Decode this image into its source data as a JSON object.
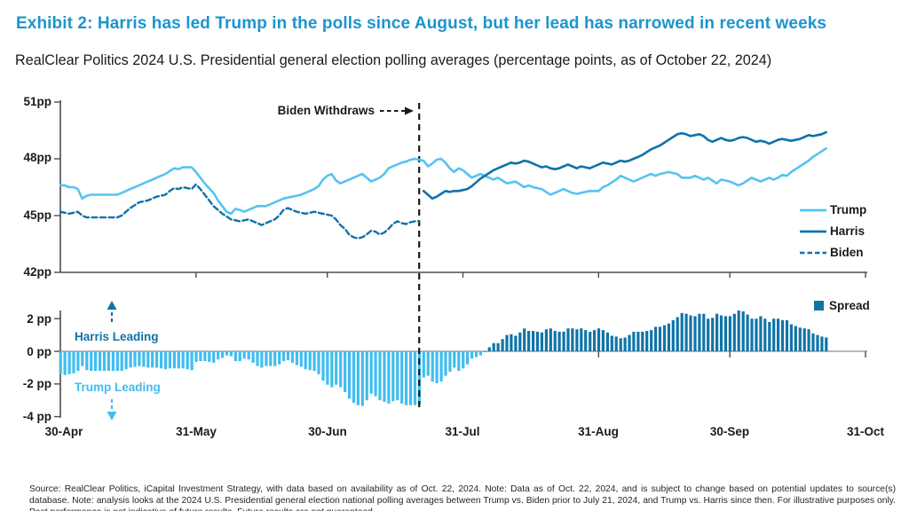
{
  "header": {
    "title": "Exhibit 2: Harris has led Trump in the polls since August, but her lead has narrowed in recent weeks",
    "subtitle": "RealClear Politics 2024 U.S. Presidential general election polling averages (percentage points, as of October 22, 2024)",
    "title_color": "#1b95cd"
  },
  "chart_data": {
    "type": "line+bar",
    "top_chart": {
      "type": "line",
      "ylim": [
        42,
        51
      ],
      "yticks": [
        51,
        48,
        45,
        42
      ],
      "ytick_labels": [
        "51pp",
        "48pp",
        "45pp",
        "42pp"
      ],
      "unit": "percentage points",
      "series": [
        {
          "name": "Trump",
          "color": "#55c4ef",
          "style": "solid",
          "start_day": 0,
          "values": [
            46.6,
            46.6,
            46.5,
            46.5,
            46.4,
            45.9,
            46.05,
            46.1,
            46.1,
            46.1,
            46.1,
            46.1,
            46.1,
            46.1,
            46.2,
            46.3,
            46.4,
            46.5,
            46.6,
            46.7,
            46.8,
            46.9,
            47.0,
            47.1,
            47.2,
            47.35,
            47.5,
            47.45,
            47.55,
            47.55,
            47.55,
            47.3,
            47.0,
            46.7,
            46.45,
            46.2,
            45.8,
            45.5,
            45.2,
            45.1,
            45.35,
            45.3,
            45.2,
            45.3,
            45.4,
            45.5,
            45.5,
            45.5,
            45.6,
            45.7,
            45.8,
            45.9,
            45.95,
            46.0,
            46.05,
            46.1,
            46.2,
            46.3,
            46.4,
            46.55,
            46.9,
            47.1,
            47.2,
            46.85,
            46.7,
            46.8,
            46.9,
            47.0,
            47.1,
            47.2,
            47.0,
            46.8,
            46.9,
            47.0,
            47.2,
            47.5,
            47.6,
            47.7,
            47.8,
            47.85,
            47.95,
            48.0,
            47.95,
            47.9,
            47.6,
            47.75,
            47.95,
            48.0,
            47.8,
            47.5,
            47.3,
            47.5,
            47.4,
            47.2,
            47.0,
            47.1,
            47.2,
            47.1,
            47.0,
            46.9,
            47.0,
            46.85,
            46.7,
            46.75,
            46.8,
            46.65,
            46.5,
            46.6,
            46.5,
            46.45,
            46.4,
            46.25,
            46.1,
            46.2,
            46.3,
            46.4,
            46.3,
            46.2,
            46.15,
            46.2,
            46.25,
            46.3,
            46.3,
            46.3,
            46.5,
            46.6,
            46.75,
            46.9,
            47.1,
            47.0,
            46.9,
            46.8,
            46.9,
            47.0,
            47.1,
            47.2,
            47.1,
            47.2,
            47.25,
            47.3,
            47.25,
            47.2,
            47.0,
            47.0,
            47.0,
            47.1,
            47.0,
            46.9,
            47.0,
            46.85,
            46.7,
            46.9,
            46.85,
            46.8,
            46.7,
            46.6,
            46.7,
            46.85,
            47.0,
            46.9,
            46.8,
            46.9,
            47.0,
            46.9,
            47.0,
            47.15,
            47.1,
            47.3,
            47.45,
            47.6,
            47.75,
            47.9,
            48.1,
            48.25,
            48.4,
            48.55
          ]
        },
        {
          "name": "Harris",
          "color": "#0f72a8",
          "style": "solid",
          "start_day": 83,
          "values": [
            46.3,
            46.1,
            45.9,
            46.0,
            46.15,
            46.3,
            46.25,
            46.3,
            46.3,
            46.35,
            46.4,
            46.55,
            46.75,
            46.95,
            47.1,
            47.25,
            47.4,
            47.5,
            47.6,
            47.7,
            47.8,
            47.75,
            47.8,
            47.9,
            47.85,
            47.75,
            47.65,
            47.55,
            47.6,
            47.5,
            47.45,
            47.5,
            47.6,
            47.7,
            47.6,
            47.5,
            47.6,
            47.55,
            47.5,
            47.6,
            47.7,
            47.8,
            47.75,
            47.7,
            47.8,
            47.9,
            47.85,
            47.9,
            48.0,
            48.1,
            48.2,
            48.35,
            48.5,
            48.6,
            48.7,
            48.85,
            49.0,
            49.15,
            49.3,
            49.35,
            49.3,
            49.2,
            49.25,
            49.3,
            49.2,
            49.0,
            48.9,
            49.0,
            49.1,
            49.0,
            48.95,
            49.0,
            49.1,
            49.15,
            49.1,
            49.0,
            48.9,
            48.95,
            48.9,
            48.8,
            48.9,
            49.0,
            49.05,
            49.0,
            48.95,
            49.0,
            49.05,
            49.15,
            49.25,
            49.2,
            49.25,
            49.3,
            49.4
          ]
        },
        {
          "name": "Biden",
          "color": "#0f72a8",
          "style": "dashed",
          "start_day": 0,
          "values": [
            45.2,
            45.15,
            45.1,
            45.15,
            45.2,
            45.0,
            44.9,
            44.9,
            44.9,
            44.9,
            44.9,
            44.9,
            44.9,
            44.9,
            45.0,
            45.2,
            45.4,
            45.55,
            45.7,
            45.75,
            45.8,
            45.9,
            46.0,
            46.05,
            46.1,
            46.3,
            46.45,
            46.4,
            46.5,
            46.45,
            46.4,
            46.65,
            46.4,
            46.1,
            45.8,
            45.5,
            45.3,
            45.1,
            44.95,
            44.8,
            44.75,
            44.7,
            44.75,
            44.8,
            44.7,
            44.6,
            44.5,
            44.6,
            44.7,
            44.8,
            45.0,
            45.3,
            45.4,
            45.3,
            45.2,
            45.15,
            45.1,
            45.15,
            45.2,
            45.15,
            45.1,
            45.05,
            45.0,
            44.8,
            44.5,
            44.3,
            44.0,
            43.85,
            43.8,
            43.85,
            44.0,
            44.2,
            44.15,
            44.0,
            44.1,
            44.3,
            44.55,
            44.7,
            44.6,
            44.55,
            44.65,
            44.7,
            44.7
          ]
        }
      ]
    },
    "bottom_chart": {
      "type": "bar",
      "name": "Spread",
      "yticks": [
        2,
        0,
        -2,
        -4
      ],
      "ytick_labels": [
        "2 pp",
        "0 pp",
        "-2 pp",
        "-4 pp"
      ],
      "spread_rule": "daily spread = (Biden before day 83, Harris after) minus Trump",
      "colors": {
        "positive": "#1074a8",
        "negative": "#41bdf0"
      }
    },
    "x_axis": {
      "tick_labels": [
        "30-Apr",
        "31-May",
        "30-Jun",
        "31-Jul",
        "31-Aug",
        "30-Sep",
        "31-Oct"
      ],
      "tick_days": [
        0,
        31,
        61,
        92,
        123,
        153,
        184
      ],
      "start_date": "30-Apr",
      "end_date": "31-Oct"
    },
    "annotations": {
      "biden_withdraws": {
        "label": "Biden Withdraws",
        "day": 82
      },
      "harris_leading": {
        "label": "Harris Leading",
        "color": "#0f72a8"
      },
      "trump_leading": {
        "label": "Trump Leading",
        "color": "#41bdf0"
      }
    },
    "legend": {
      "items": [
        "Trump",
        "Harris",
        "Biden"
      ],
      "spread_label": "Spread",
      "position": "right"
    }
  },
  "footer": {
    "source_text": "Source: RealClear Politics, iCapital Investment Strategy, with data based on availability as of Oct. 22, 2024. Note: Data as of Oct. 22, 2024, and is subject to change based on potential updates to source(s) database. Note: analysis looks at the 2024 U.S. Presidential general election national polling averages between Trump vs. Biden prior to July 21, 2024, and Trump vs. Harris since then. For illustrative purposes only. Past performance is not indicative of future results. Future results are not guaranteed."
  }
}
